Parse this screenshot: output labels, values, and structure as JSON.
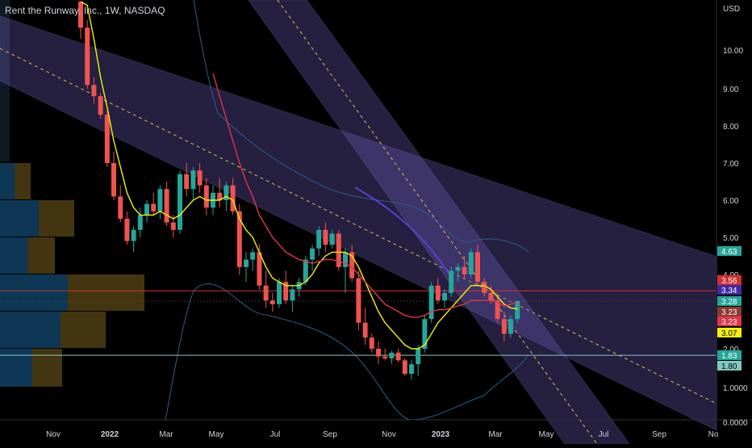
{
  "header": {
    "title": "Rent the Runway, Inc., 1W, NASDAQ",
    "currency": "USD"
  },
  "chart_data": {
    "type": "candlestick",
    "title": "Rent the Runway, Inc., 1W, NASDAQ",
    "ylabel": "USD",
    "ylim": [
      0,
      11.3
    ],
    "grid": false,
    "x_ticks": [
      "Nov",
      "2022",
      "Mar",
      "May",
      "Jul",
      "Sep",
      "Nov",
      "2023",
      "Mar",
      "May",
      "Jul",
      "Sep",
      "No"
    ],
    "y_ticks": [
      "1.0000",
      "2.00",
      "3.00",
      "4.00",
      "5.00",
      "6.00",
      "7.00",
      "8.00",
      "9.00",
      "10.00",
      "0.0000"
    ],
    "y_tick_values": [
      1,
      2,
      3,
      4,
      5,
      6,
      7,
      8,
      9,
      10,
      0
    ],
    "candles": [
      [
        11.5,
        12.0,
        10.3,
        10.6
      ],
      [
        10.6,
        10.8,
        9.0,
        9.1
      ],
      [
        9.1,
        9.3,
        8.6,
        8.8
      ],
      [
        8.8,
        8.9,
        8.2,
        8.3
      ],
      [
        8.3,
        8.4,
        6.9,
        7.0
      ],
      [
        7.0,
        7.3,
        6.0,
        6.1
      ],
      [
        6.1,
        6.4,
        5.4,
        5.5
      ],
      [
        5.5,
        5.7,
        4.8,
        4.9
      ],
      [
        4.9,
        5.3,
        4.6,
        5.2
      ],
      [
        5.2,
        5.8,
        5.0,
        5.6
      ],
      [
        5.6,
        6.0,
        5.4,
        5.9
      ],
      [
        5.9,
        6.2,
        5.6,
        5.7
      ],
      [
        5.7,
        6.4,
        5.5,
        6.3
      ],
      [
        6.3,
        6.5,
        5.3,
        5.4
      ],
      [
        5.4,
        5.6,
        5.0,
        5.2
      ],
      [
        5.2,
        6.8,
        5.1,
        6.7
      ],
      [
        6.7,
        7.0,
        6.1,
        6.3
      ],
      [
        6.3,
        6.9,
        6.0,
        6.8
      ],
      [
        6.8,
        7.0,
        6.2,
        6.4
      ],
      [
        6.4,
        6.6,
        5.6,
        5.8
      ],
      [
        5.8,
        6.4,
        5.6,
        6.2
      ],
      [
        6.2,
        6.6,
        5.8,
        6.0
      ],
      [
        6.0,
        6.5,
        5.7,
        6.4
      ],
      [
        6.4,
        6.6,
        5.6,
        5.7
      ],
      [
        5.7,
        5.9,
        4.0,
        4.2
      ],
      [
        4.2,
        4.6,
        3.8,
        4.4
      ],
      [
        4.4,
        4.7,
        4.1,
        4.6
      ],
      [
        4.6,
        4.8,
        3.6,
        3.7
      ],
      [
        3.7,
        4.1,
        3.1,
        3.3
      ],
      [
        3.3,
        3.5,
        3.0,
        3.2
      ],
      [
        3.2,
        3.9,
        3.1,
        3.8
      ],
      [
        3.8,
        4.1,
        3.2,
        3.3
      ],
      [
        3.3,
        3.7,
        3.0,
        3.6
      ],
      [
        3.6,
        3.9,
        3.4,
        3.8
      ],
      [
        3.8,
        4.5,
        3.7,
        4.4
      ],
      [
        4.4,
        4.8,
        4.1,
        4.7
      ],
      [
        4.7,
        5.3,
        4.5,
        5.2
      ],
      [
        5.2,
        5.4,
        4.6,
        4.8
      ],
      [
        4.8,
        5.2,
        4.7,
        5.1
      ],
      [
        5.1,
        5.2,
        4.1,
        4.2
      ],
      [
        4.2,
        4.7,
        3.5,
        4.6
      ],
      [
        4.6,
        4.8,
        3.8,
        3.9
      ],
      [
        3.9,
        4.1,
        2.5,
        2.7
      ],
      [
        2.7,
        3.1,
        2.1,
        2.3
      ],
      [
        2.3,
        2.4,
        1.9,
        2.0
      ],
      [
        2.0,
        2.2,
        1.6,
        1.8
      ],
      [
        1.8,
        2.0,
        1.7,
        1.75
      ],
      [
        1.75,
        1.95,
        1.6,
        1.9
      ],
      [
        1.9,
        2.0,
        1.65,
        1.7
      ],
      [
        1.7,
        1.75,
        1.3,
        1.35
      ],
      [
        1.35,
        1.7,
        1.2,
        1.6
      ],
      [
        1.6,
        2.1,
        1.3,
        2.0
      ],
      [
        2.0,
        2.9,
        1.9,
        2.8
      ],
      [
        2.8,
        3.8,
        2.7,
        3.7
      ],
      [
        3.7,
        3.9,
        3.2,
        3.3
      ],
      [
        3.3,
        3.6,
        3.1,
        3.5
      ],
      [
        3.5,
        4.2,
        3.4,
        4.1
      ],
      [
        4.1,
        4.3,
        3.8,
        4.2
      ],
      [
        4.2,
        4.5,
        3.9,
        4.0
      ],
      [
        4.0,
        4.7,
        3.9,
        4.6
      ],
      [
        4.6,
        4.8,
        3.7,
        3.8
      ],
      [
        3.8,
        3.9,
        3.4,
        3.5
      ],
      [
        3.5,
        3.7,
        3.2,
        3.3
      ],
      [
        3.3,
        3.5,
        2.7,
        2.8
      ],
      [
        2.8,
        3.0,
        2.2,
        2.4
      ],
      [
        2.4,
        2.9,
        2.3,
        2.8
      ],
      [
        2.8,
        3.3,
        2.7,
        3.28
      ]
    ],
    "ema_fast": [
      12.0,
      11.2,
      10.3,
      9.3,
      8.5,
      7.6,
      6.9,
      6.2,
      5.8,
      5.6,
      5.6,
      5.6,
      5.7,
      5.6,
      5.5,
      5.6,
      5.8,
      6.0,
      6.1,
      6.0,
      6.0,
      6.0,
      6.1,
      6.0,
      5.5,
      5.2,
      5.0,
      4.6,
      4.2,
      3.9,
      3.8,
      3.7,
      3.7,
      3.7,
      3.8,
      4.0,
      4.3,
      4.5,
      4.6,
      4.6,
      4.6,
      4.5,
      4.2,
      3.8,
      3.4,
      3.0,
      2.7,
      2.5,
      2.3,
      2.1,
      2.0,
      2.0,
      2.1,
      2.4,
      2.7,
      2.9,
      3.1,
      3.3,
      3.5,
      3.7,
      3.7,
      3.7,
      3.6,
      3.4,
      3.2,
      3.1,
      3.07
    ],
    "ema_slow": [
      null,
      null,
      null,
      null,
      null,
      null,
      null,
      null,
      null,
      null,
      null,
      null,
      null,
      null,
      null,
      null,
      null,
      null,
      null,
      null,
      9.4,
      8.8,
      8.2,
      7.6,
      7.0,
      6.5,
      6.1,
      5.6,
      5.3,
      5.0,
      4.8,
      4.6,
      4.5,
      4.4,
      4.35,
      4.3,
      4.35,
      4.4,
      4.4,
      4.35,
      4.3,
      4.2,
      4.0,
      3.8,
      3.6,
      3.4,
      3.2,
      3.1,
      3.0,
      2.9,
      2.85,
      2.85,
      2.9,
      3.0,
      3.05,
      3.05,
      3.1,
      3.15,
      3.2,
      3.3,
      3.3,
      3.3,
      3.3,
      3.25,
      3.15,
      3.2,
      3.23
    ],
    "horizontal_lines": {
      "red": 3.56,
      "cyan": 1.83
    },
    "price_labels": [
      {
        "text": "4.63",
        "color": "#26a69a",
        "value": 4.63
      },
      {
        "text": "3.56",
        "color": "#d32f2f",
        "value": 3.56
      },
      {
        "text": "3.34",
        "color": "#3f2aa8",
        "value": 3.34
      },
      {
        "text": "3.28",
        "color": "#26a69a",
        "value": 3.28
      },
      {
        "text": "3.23",
        "color": "#8b3a30",
        "value": 3.23
      },
      {
        "text": "3.23",
        "color": "#e0354a",
        "value": 3.23
      },
      {
        "text": "3.07",
        "color": "#f5f10a",
        "value": 3.07
      },
      {
        "text": "1.83",
        "color": "#26a69a",
        "value": 1.83
      },
      {
        "text": "1.80",
        "color": "#80c8c0",
        "value": 1.8
      }
    ],
    "volume_profile": [
      {
        "low": 6.9,
        "high": 11.3,
        "blue": 0.0,
        "amber": 0.0
      },
      {
        "low": 6.0,
        "high": 7.0,
        "blue": 18,
        "amber": 20
      },
      {
        "low": 5.0,
        "high": 6.0,
        "blue": 48,
        "amber": 44
      },
      {
        "low": 4.0,
        "high": 5.0,
        "blue": 34,
        "amber": 34
      },
      {
        "low": 3.0,
        "high": 4.0,
        "blue": 84,
        "amber": 95
      },
      {
        "low": 2.0,
        "high": 3.0,
        "blue": 75,
        "amber": 56
      },
      {
        "low": 1.0,
        "high": 2.0,
        "blue": 40,
        "amber": 37
      }
    ]
  }
}
